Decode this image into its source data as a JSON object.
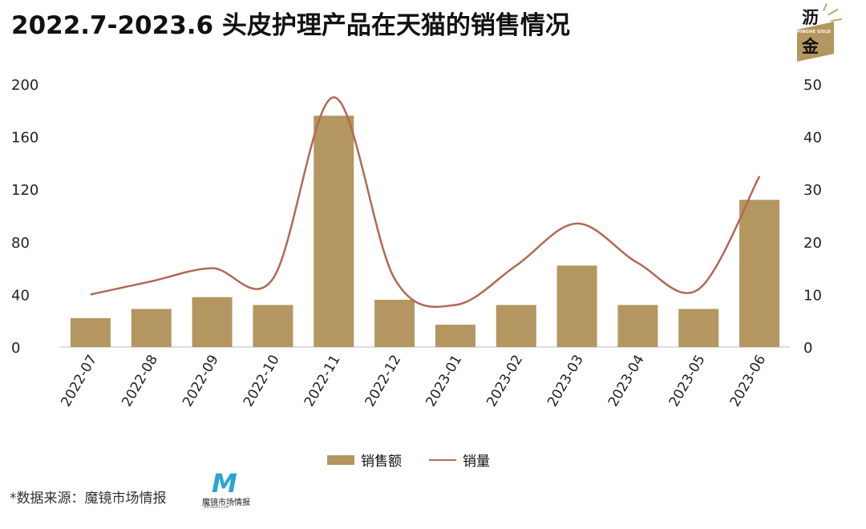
{
  "title": "2022.7-2023.6 头皮护理产品在天猫的销售情况",
  "logo": {
    "line1": "沥",
    "line2": "金",
    "sub": "PINGHE GOLD"
  },
  "source": "*数据来源：魔镜市场情报",
  "source_logo": {
    "mark": "M",
    "name": "魔镜市场情报",
    "sub": "MKTINDEX.COM"
  },
  "colors": {
    "bar": "#b49660",
    "line": "#b06a55"
  },
  "chart_data": {
    "type": "bar",
    "categories": [
      "2022-07",
      "2022-08",
      "2022-09",
      "2022-10",
      "2022-11",
      "2022-12",
      "2023-01",
      "2023-02",
      "2023-03",
      "2023-04",
      "2023-05",
      "2023-06"
    ],
    "series": [
      {
        "name": "销售额",
        "type": "bar",
        "axis": "left",
        "values": [
          22,
          29,
          38,
          32,
          176,
          36,
          17,
          32,
          62,
          32,
          29,
          112
        ]
      },
      {
        "name": "销量",
        "type": "line",
        "axis": "right",
        "values": [
          10,
          12.5,
          15,
          13,
          47.5,
          13,
          8,
          15.5,
          23.5,
          16,
          11,
          32.5
        ]
      }
    ],
    "left_axis": {
      "ticks": [
        "0",
        "40",
        "80",
        "120",
        "160",
        "200"
      ],
      "ylim": [
        0,
        200
      ]
    },
    "right_axis": {
      "ticks": [
        "0",
        "10",
        "20",
        "30",
        "40",
        "50"
      ],
      "ylim": [
        0,
        50
      ]
    },
    "legend_position": "bottom",
    "grid": false
  }
}
